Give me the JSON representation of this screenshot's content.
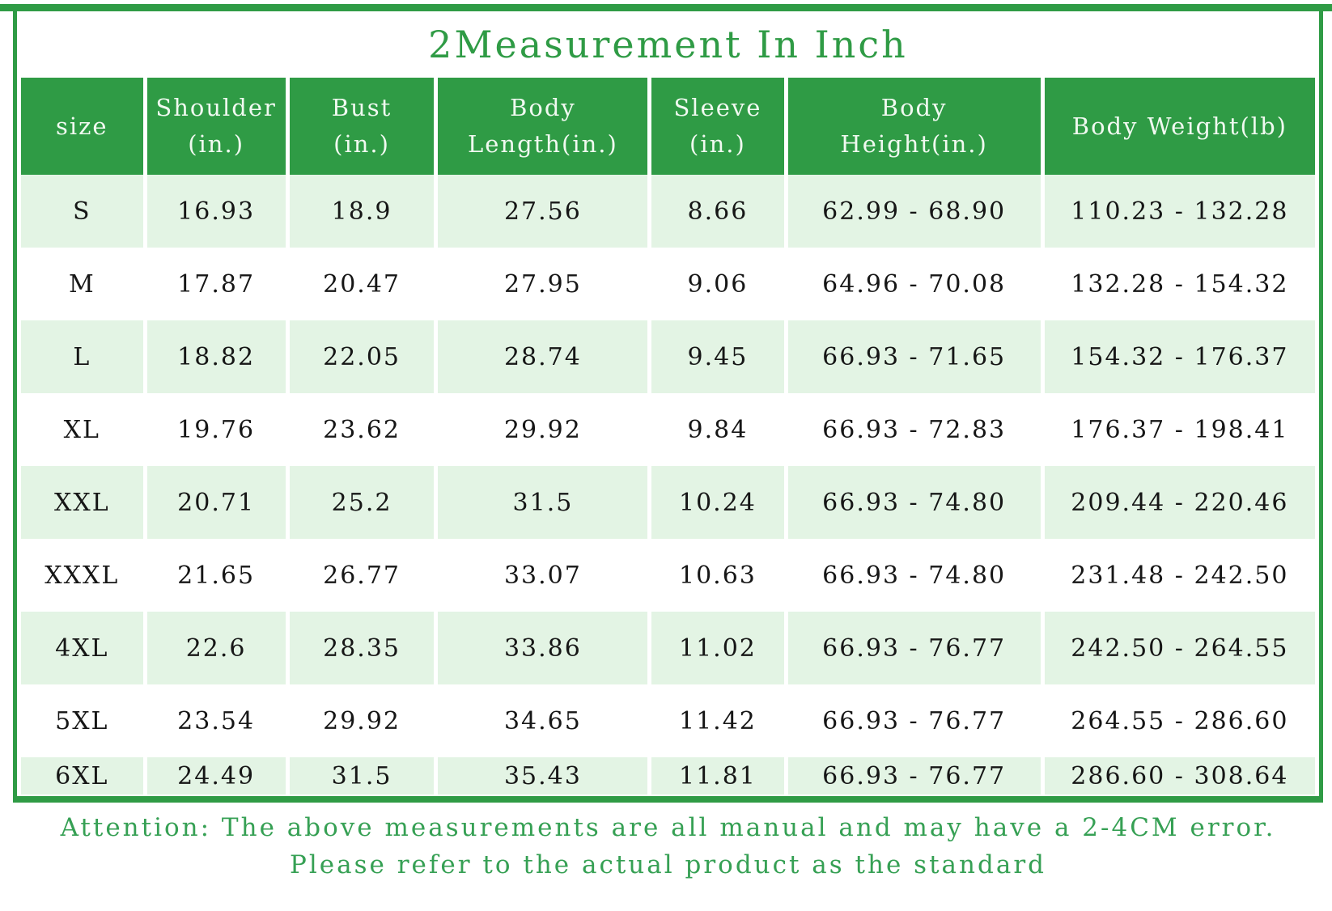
{
  "title": "2Measurement In Inch",
  "footer": {
    "line1": "Attention: The above measurements are all manual and may have a 2-4CM error.",
    "line2": "Please refer to the actual product as the standard"
  },
  "colors": {
    "green": "#2f9b45",
    "light_green": "#e3f4e4",
    "footer_green": "#36a054",
    "header_text": "#f0f9f0",
    "data_text": "#161616"
  },
  "chart_data": {
    "type": "table",
    "title": "2Measurement In Inch",
    "unit_note": "measurements in inches, weight in lb",
    "columns": [
      {
        "id": "size",
        "lines": [
          "size"
        ],
        "width_pct": 9.6
      },
      {
        "id": "shoulder",
        "lines": [
          "Shoulder",
          "(in.)"
        ],
        "width_pct": 10.9
      },
      {
        "id": "bust",
        "lines": [
          "Bust",
          "(in.)"
        ],
        "width_pct": 11.4
      },
      {
        "id": "body-length",
        "lines": [
          "Body",
          "Length(in.)"
        ],
        "width_pct": 16.5
      },
      {
        "id": "sleeve",
        "lines": [
          "Sleeve",
          "(in.)"
        ],
        "width_pct": 10.4
      },
      {
        "id": "body-height",
        "lines": [
          "Body",
          "Height(in.)"
        ],
        "width_pct": 19.9
      },
      {
        "id": "body-weight",
        "lines": [
          "Body Weight(lb)"
        ],
        "width_pct": 21.3
      }
    ],
    "rows": [
      [
        "S",
        "16.93",
        "18.9",
        "27.56",
        "8.66",
        "62.99 - 68.90",
        "110.23 - 132.28"
      ],
      [
        "M",
        "17.87",
        "20.47",
        "27.95",
        "9.06",
        "64.96 - 70.08",
        "132.28 - 154.32"
      ],
      [
        "L",
        "18.82",
        "22.05",
        "28.74",
        "9.45",
        "66.93 - 71.65",
        "154.32 - 176.37"
      ],
      [
        "XL",
        "19.76",
        "23.62",
        "29.92",
        "9.84",
        "66.93 - 72.83",
        "176.37 - 198.41"
      ],
      [
        "XXL",
        "20.71",
        "25.2",
        "31.5",
        "10.24",
        "66.93 - 74.80",
        "209.44 - 220.46"
      ],
      [
        "XXXL",
        "21.65",
        "26.77",
        "33.07",
        "10.63",
        "66.93 - 74.80",
        "231.48 - 242.50"
      ],
      [
        "4XL",
        "22.6",
        "28.35",
        "33.86",
        "11.02",
        "66.93 - 76.77",
        "242.50 - 264.55"
      ],
      [
        "5XL",
        "23.54",
        "29.92",
        "34.65",
        "11.42",
        "66.93 - 76.77",
        "264.55 - 286.60"
      ],
      [
        "6XL",
        "24.49",
        "31.5",
        "35.43",
        "11.81",
        "66.93 - 76.77",
        "286.60 - 308.64"
      ]
    ],
    "notes": [
      "Attention: The above measurements are all manual and may have a 2-4CM error.",
      "Please refer to the actual product as the standard"
    ],
    "layout_hints": {
      "header_bg": "#2f9b45",
      "odd_row_bg": "#e3f4e4",
      "even_row_bg": "#ffffff",
      "grid": "white vertical gutters between cells"
    }
  }
}
